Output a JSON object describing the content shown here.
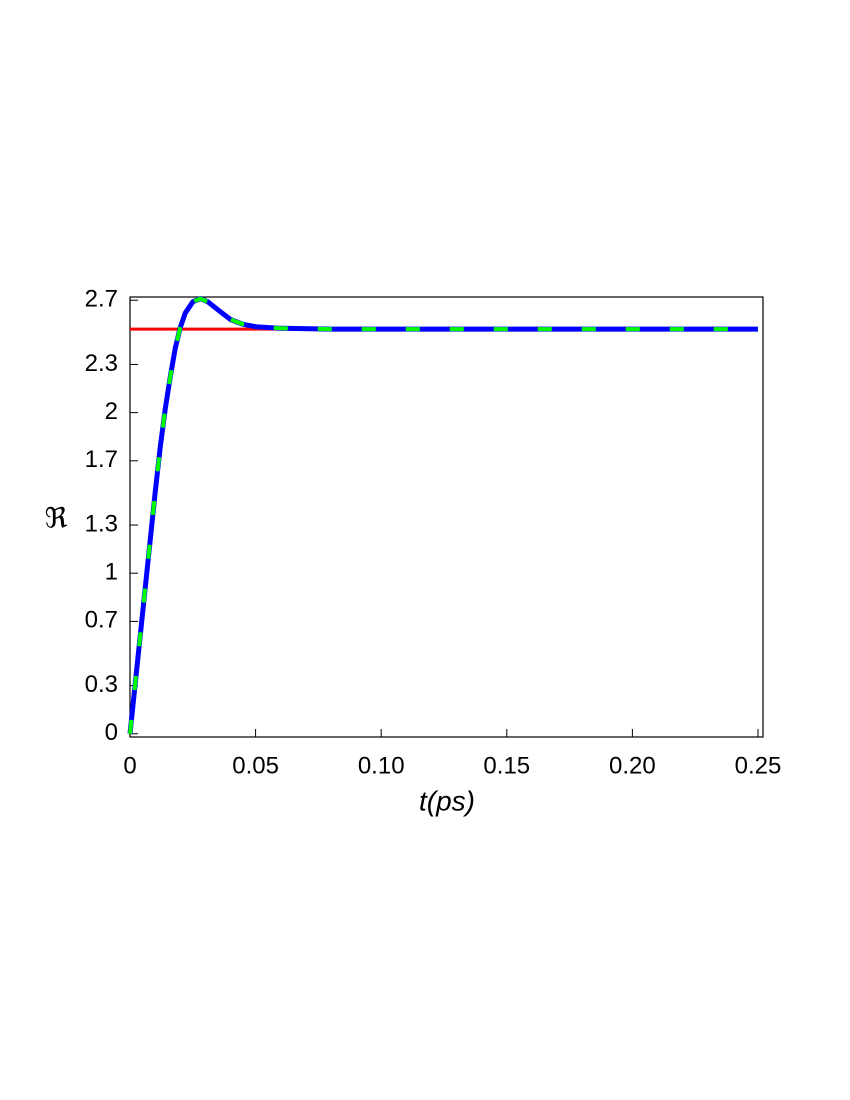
{
  "chart_data": {
    "type": "line",
    "x_label": "t(ps)",
    "y_label": "ℜ",
    "xlim": [
      0,
      0.252
    ],
    "ylim": [
      -0.02,
      2.72
    ],
    "xticks": [
      0,
      0.05,
      {
        "value": 0.1,
        "label": "0.10"
      },
      0.15,
      {
        "value": 0.2,
        "label": "0.20"
      },
      0.25
    ],
    "yticks": [
      0,
      0.3,
      0.7,
      1,
      1.3,
      1.7,
      2,
      2.3,
      2.7
    ],
    "grid": false,
    "series": [
      {
        "color": "#ff0000",
        "dash": false,
        "x": [
          0,
          0.25
        ],
        "values": [
          2.52,
          2.52
        ]
      },
      {
        "color": "#0000ff",
        "dash": false,
        "x": [
          0,
          0.002,
          0.004,
          0.006,
          0.008,
          0.01,
          0.012,
          0.014,
          0.016,
          0.018,
          0.02,
          0.022,
          0.025,
          0.028,
          0.031,
          0.035,
          0.04,
          0.045,
          0.05,
          0.06,
          0.08,
          0.25
        ],
        "values": [
          0,
          0.3,
          0.6,
          0.9,
          1.2,
          1.5,
          1.78,
          2.02,
          2.22,
          2.4,
          2.53,
          2.62,
          2.69,
          2.71,
          2.69,
          2.64,
          2.58,
          2.55,
          2.535,
          2.525,
          2.52,
          2.52
        ]
      },
      {
        "color": "#00ff00",
        "dash": true,
        "x": [
          0,
          0.002,
          0.004,
          0.006,
          0.008,
          0.01,
          0.012,
          0.014,
          0.016,
          0.018,
          0.02,
          0.022,
          0.025,
          0.028,
          0.031,
          0.035,
          0.04,
          0.045,
          0.05,
          0.06,
          0.08,
          0.25
        ],
        "values": [
          0,
          0.3,
          0.6,
          0.9,
          1.2,
          1.5,
          1.78,
          2.02,
          2.22,
          2.4,
          2.53,
          2.62,
          2.69,
          2.71,
          2.69,
          2.64,
          2.58,
          2.55,
          2.535,
          2.525,
          2.52,
          2.52
        ]
      }
    ]
  }
}
